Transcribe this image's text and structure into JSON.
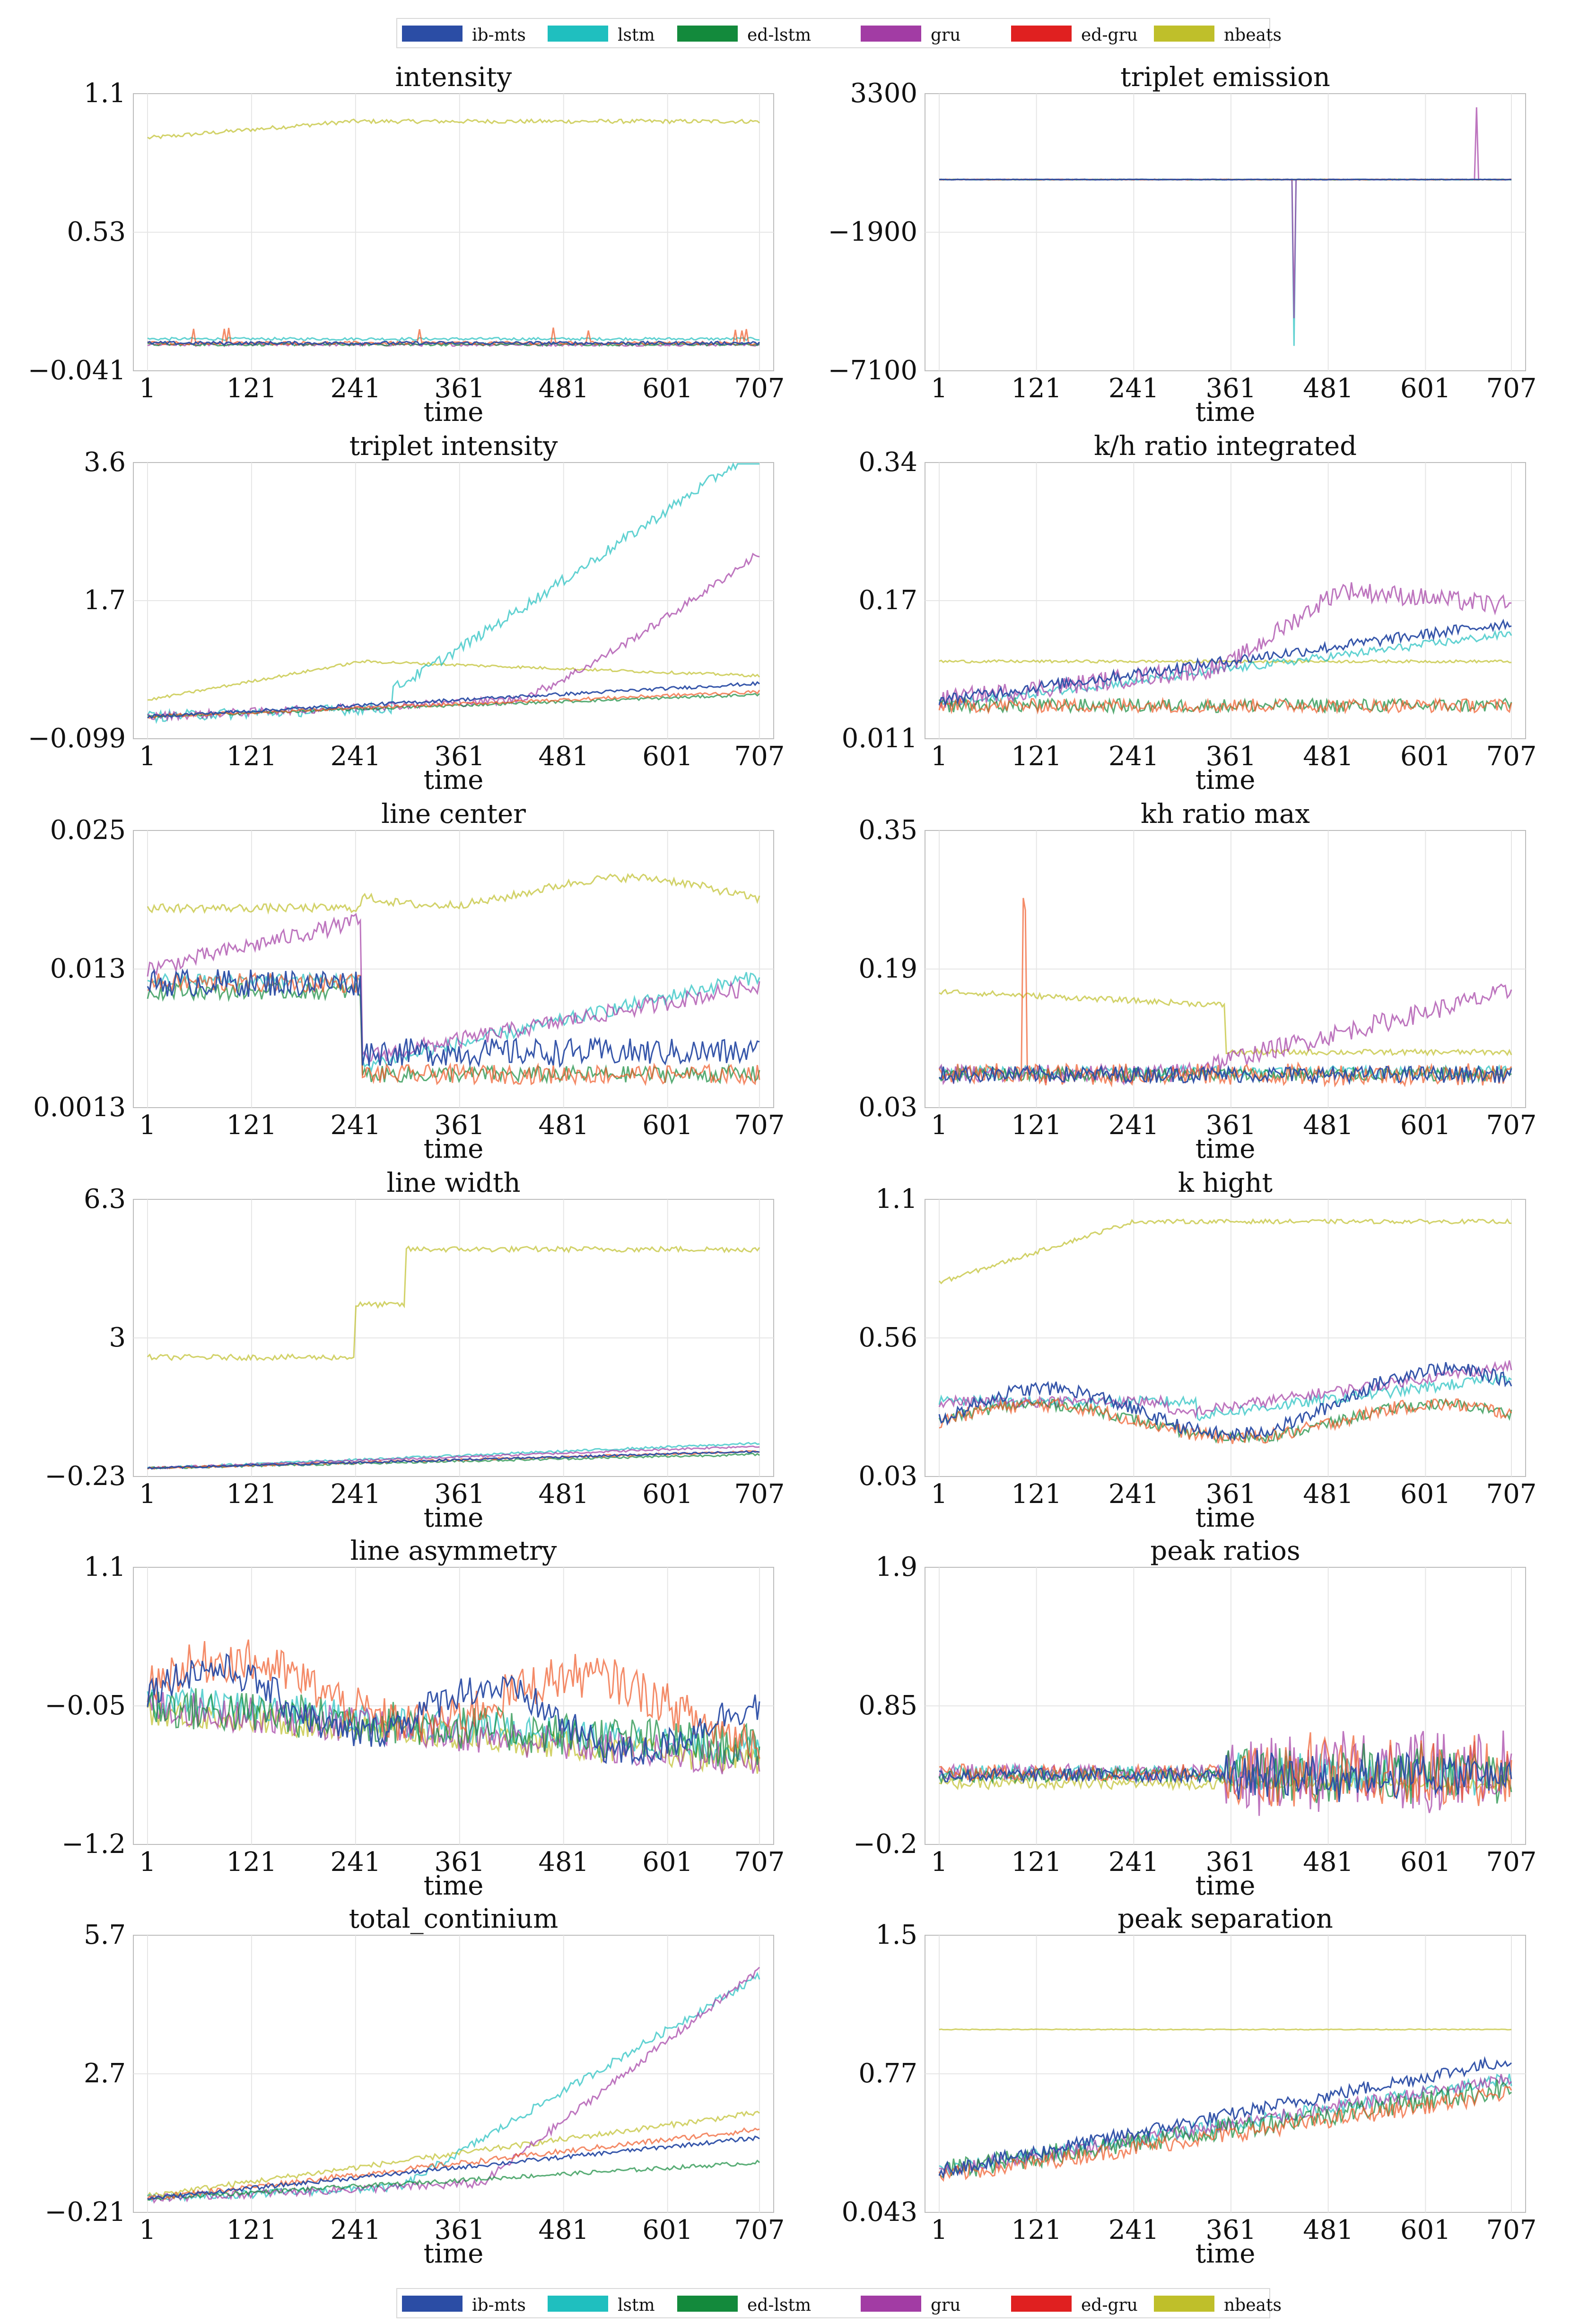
{
  "legend": {
    "top": [
      {
        "label": "ib-mts",
        "color": "#2b4da5"
      },
      {
        "label": "lstm",
        "color": "#1fbfbf"
      },
      {
        "label": "ed-lstm",
        "color": "#138a3c"
      },
      {
        "label": "gru",
        "color": "#a23ca4"
      },
      {
        "label": "ed-gru",
        "color": "#e02020"
      },
      {
        "label": "nbeats",
        "color": "#bfbf2a"
      }
    ],
    "bottom": [
      {
        "label": "ib-mts",
        "color": "#2b4da5"
      },
      {
        "label": "lstm",
        "color": "#1fbfbf"
      },
      {
        "label": "ed-lstm",
        "color": "#138a3c"
      },
      {
        "label": "gru",
        "color": "#a23ca4"
      },
      {
        "label": "ed-gru",
        "color": "#e02020"
      },
      {
        "label": "nbeats",
        "color": "#bfbf2a"
      }
    ]
  },
  "chart_data": [
    {
      "type": "line",
      "title": "intensity",
      "xlabel": "time",
      "xlim": [
        1,
        707
      ],
      "xticks": [
        "1",
        "121",
        "241",
        "361",
        "481",
        "601",
        "707"
      ],
      "yticks": [
        "-0.041",
        "0.53",
        "1.1"
      ],
      "ylim": [
        -0.041,
        1.1
      ]
    },
    {
      "type": "line",
      "title": "triplet emission",
      "xlabel": "time",
      "xlim": [
        1,
        707
      ],
      "xticks": [
        "1",
        "121",
        "241",
        "361",
        "481",
        "601",
        "707"
      ],
      "yticks": [
        "-7100",
        "-1900",
        "3300"
      ],
      "ylim": [
        -7100,
        3300
      ]
    },
    {
      "type": "line",
      "title": "triplet intensity",
      "xlabel": "time",
      "xlim": [
        1,
        707
      ],
      "xticks": [
        "1",
        "121",
        "241",
        "361",
        "481",
        "601",
        "707"
      ],
      "yticks": [
        "-0.099",
        "1.7",
        "3.6"
      ],
      "ylim": [
        -0.099,
        3.6
      ]
    },
    {
      "type": "line",
      "title": "k/h ratio integrated",
      "xlabel": "time",
      "xlim": [
        1,
        707
      ],
      "xticks": [
        "1",
        "121",
        "241",
        "361",
        "481",
        "601",
        "707"
      ],
      "yticks": [
        "0.011",
        "0.17",
        "0.34"
      ],
      "ylim": [
        0.011,
        0.34
      ]
    },
    {
      "type": "line",
      "title": "line center",
      "xlabel": "time",
      "xlim": [
        1,
        707
      ],
      "xticks": [
        "1",
        "121",
        "241",
        "361",
        "481",
        "601",
        "707"
      ],
      "yticks": [
        "0.0013",
        "0.013",
        "0.025"
      ],
      "ylim": [
        0.0013,
        0.025
      ]
    },
    {
      "type": "line",
      "title": "kh ratio max",
      "xlabel": "time",
      "xlim": [
        1,
        707
      ],
      "xticks": [
        "1",
        "121",
        "241",
        "361",
        "481",
        "601",
        "707"
      ],
      "yticks": [
        "0.03",
        "0.19",
        "0.35"
      ],
      "ylim": [
        0.03,
        0.35
      ]
    },
    {
      "type": "line",
      "title": "line width",
      "xlabel": "time",
      "xlim": [
        1,
        707
      ],
      "xticks": [
        "1",
        "121",
        "241",
        "361",
        "481",
        "601",
        "707"
      ],
      "yticks": [
        "-0.23",
        "3",
        "6.3"
      ],
      "ylim": [
        -0.23,
        6.3
      ]
    },
    {
      "type": "line",
      "title": "k hight",
      "xlabel": "time",
      "xlim": [
        1,
        707
      ],
      "xticks": [
        "1",
        "121",
        "241",
        "361",
        "481",
        "601",
        "707"
      ],
      "yticks": [
        "0.03",
        "0.56",
        "1.1"
      ],
      "ylim": [
        0.03,
        1.1
      ]
    },
    {
      "type": "line",
      "title": "line asymmetry",
      "xlabel": "time",
      "xlim": [
        1,
        707
      ],
      "xticks": [
        "1",
        "121",
        "241",
        "361",
        "481",
        "601",
        "707"
      ],
      "yticks": [
        "-1.2",
        "-0.05",
        "1.1"
      ],
      "ylim": [
        -1.2,
        1.1
      ]
    },
    {
      "type": "line",
      "title": "peak ratios",
      "xlabel": "time",
      "xlim": [
        1,
        707
      ],
      "xticks": [
        "1",
        "121",
        "241",
        "361",
        "481",
        "601",
        "707"
      ],
      "yticks": [
        "-0.2",
        "0.85",
        "1.9"
      ],
      "ylim": [
        -0.2,
        1.9
      ]
    },
    {
      "type": "line",
      "title": "total_continium",
      "xlabel": "time",
      "xlim": [
        1,
        707
      ],
      "xticks": [
        "1",
        "121",
        "241",
        "361",
        "481",
        "601",
        "707"
      ],
      "yticks": [
        "-0.21",
        "2.7",
        "5.7"
      ],
      "ylim": [
        -0.21,
        5.7
      ]
    },
    {
      "type": "line",
      "title": "peak separation",
      "xlabel": "time",
      "xlim": [
        1,
        707
      ],
      "xticks": [
        "1",
        "121",
        "241",
        "361",
        "481",
        "601",
        "707"
      ],
      "yticks": [
        "0.043",
        "0.77",
        "1.5"
      ],
      "ylim": [
        0.043,
        1.5
      ]
    }
  ]
}
